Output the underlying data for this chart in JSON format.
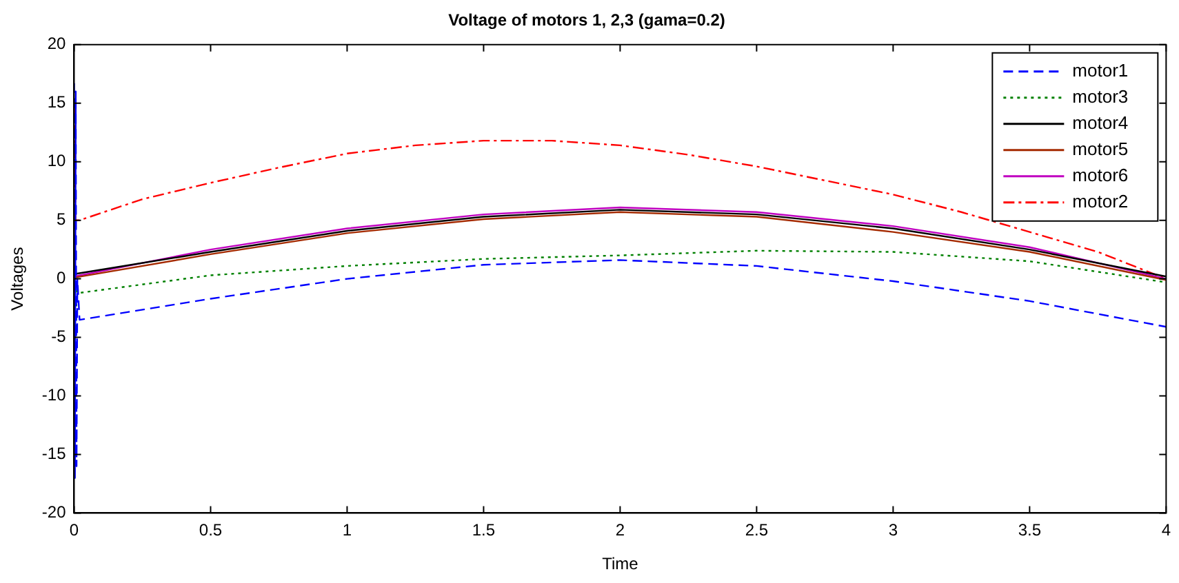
{
  "chart_data": {
    "type": "line",
    "title": "Voltage of motors 1, 2,3 (gama=0.2)",
    "xlabel": "Time",
    "ylabel": "Voltages",
    "xlim": [
      0,
      4
    ],
    "xticks": [
      0,
      0.5,
      1,
      1.5,
      2,
      2.5,
      3,
      3.5,
      4
    ],
    "ylim": [
      -20,
      20
    ],
    "yticks": [
      -20,
      -15,
      -10,
      -5,
      0,
      5,
      10,
      15,
      20
    ],
    "legend": "top right",
    "grid": false,
    "series": [
      {
        "name": "motor1",
        "color": "#0000ff",
        "line_style": "dashed",
        "x": [
          0,
          0.003,
          0.006,
          0.009,
          0.012,
          0.02,
          0.5,
          1,
          1.5,
          2,
          2.5,
          3,
          3.5,
          4
        ],
        "values": [
          16.7,
          -17,
          16,
          -16,
          0,
          -3.5,
          -1.7,
          0,
          1.2,
          1.6,
          1.1,
          -0.2,
          -1.9,
          -4.1
        ]
      },
      {
        "name": "motor3",
        "color": "#008000",
        "line_style": "dotted",
        "x": [
          0,
          0.005,
          0.01,
          0.02,
          0.5,
          1,
          1.5,
          2,
          2.5,
          3,
          3.5,
          4
        ],
        "values": [
          0,
          -5,
          -1,
          -1.2,
          0.3,
          1.1,
          1.7,
          2.0,
          2.4,
          2.3,
          1.5,
          -0.3
        ]
      },
      {
        "name": "motor4",
        "color": "#000000",
        "line_style": "solid",
        "x": [
          0,
          0.5,
          1,
          1.5,
          2,
          2.5,
          3,
          3.5,
          4
        ],
        "values": [
          0.4,
          2.3,
          4.1,
          5.3,
          5.9,
          5.5,
          4.3,
          2.5,
          0.2
        ]
      },
      {
        "name": "motor5",
        "color": "#a52a00",
        "line_style": "solid",
        "x": [
          0,
          0.5,
          1,
          1.5,
          2,
          2.5,
          3,
          3.5,
          4
        ],
        "values": [
          0.1,
          2.1,
          3.9,
          5.1,
          5.7,
          5.3,
          4.0,
          2.3,
          -0.1
        ]
      },
      {
        "name": "motor6",
        "color": "#c000c0",
        "line_style": "solid",
        "x": [
          0,
          0.5,
          1,
          1.5,
          2,
          2.5,
          3,
          3.5,
          4
        ],
        "values": [
          0.2,
          2.5,
          4.3,
          5.5,
          6.1,
          5.7,
          4.5,
          2.7,
          0
        ]
      },
      {
        "name": "motor2",
        "color": "#ff0000",
        "line_style": "dashdot",
        "x": [
          0,
          0.005,
          0.02,
          0.25,
          0.5,
          0.75,
          1,
          1.25,
          1.5,
          1.75,
          2,
          2.25,
          2.5,
          2.75,
          3,
          3.25,
          3.5,
          3.75,
          4
        ],
        "values": [
          15,
          5,
          5,
          6.8,
          8.2,
          9.5,
          10.7,
          11.4,
          11.8,
          11.8,
          11.4,
          10.6,
          9.6,
          8.4,
          7.2,
          5.7,
          4,
          2.3,
          0
        ]
      }
    ]
  }
}
